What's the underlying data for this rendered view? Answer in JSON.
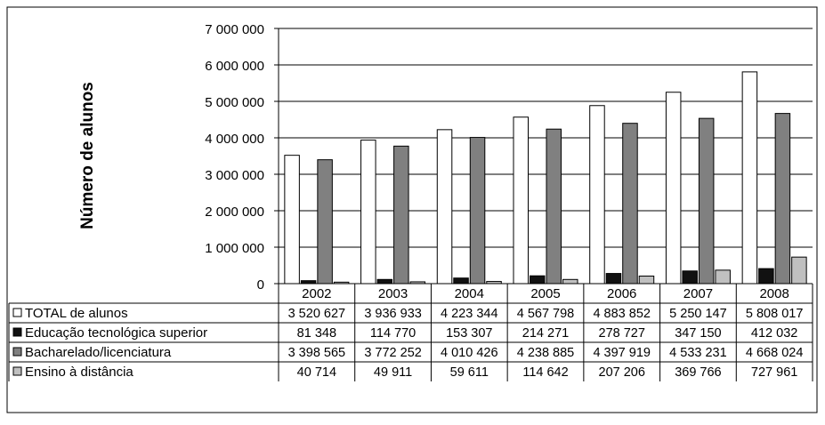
{
  "chart_data": {
    "type": "bar",
    "title": "",
    "xlabel": "",
    "ylabel": "Número de alunos",
    "ylim": [
      0,
      7000000
    ],
    "yticks": [
      0,
      1000000,
      2000000,
      3000000,
      4000000,
      5000000,
      6000000,
      7000000
    ],
    "ytick_labels": [
      "0",
      "1 000 000",
      "2 000 000",
      "3 000 000",
      "4 000 000",
      "5 000 000",
      "6 000 000",
      "7 000 000"
    ],
    "grid": true,
    "legend_placement": "data-table-left",
    "categories": [
      "2002",
      "2003",
      "2004",
      "2005",
      "2006",
      "2007",
      "2008"
    ],
    "series": [
      {
        "name": "TOTAL de alunos",
        "color": "#ffffff",
        "values": [
          3520627,
          3936933,
          4223344,
          4567798,
          4883852,
          5250147,
          5808017
        ],
        "labels": [
          "3 520 627",
          "3 936 933",
          "4 223 344",
          "4 567 798",
          "4 883 852",
          "5 250 147",
          "5 808 017"
        ]
      },
      {
        "name": "Educação tecnológica superior",
        "color": "#111111",
        "values": [
          81348,
          114770,
          153307,
          214271,
          278727,
          347150,
          412032
        ],
        "labels": [
          "81 348",
          "114 770",
          "153 307",
          "214 271",
          "278 727",
          "347 150",
          "412 032"
        ]
      },
      {
        "name": "Bacharelado/licenciatura",
        "color": "#808080",
        "values": [
          3398565,
          3772252,
          4010426,
          4238885,
          4397919,
          4533231,
          4668024
        ],
        "labels": [
          "3 398 565",
          "3 772 252",
          "4 010 426",
          "4 238 885",
          "4 397 919",
          "4 533 231",
          "4 668 024"
        ]
      },
      {
        "name": "Ensino à distância",
        "color": "#c0c0c0",
        "values": [
          40714,
          49911,
          59611,
          114642,
          207206,
          369766,
          727961
        ],
        "labels": [
          "40 714",
          "49 911",
          "59 611",
          "114 642",
          "207 206",
          "369 766",
          "727 961"
        ]
      }
    ]
  }
}
